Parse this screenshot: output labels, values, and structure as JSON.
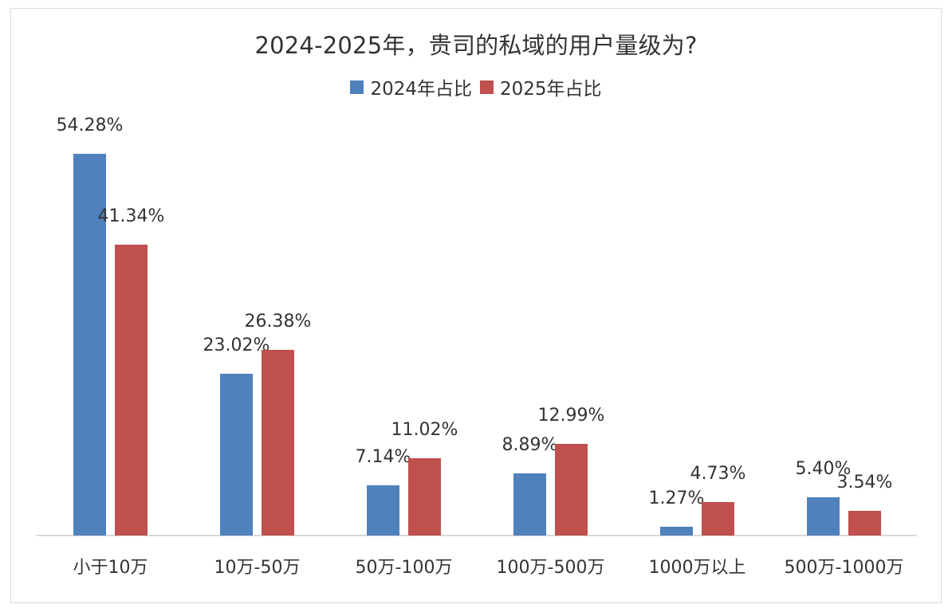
{
  "chart": {
    "title": "2024-2025年，贵司的私域的用户量级为?",
    "legend": [
      {
        "label": "2024年占比",
        "color": "#4f81bd"
      },
      {
        "label": "2025年占比",
        "color": "#c0504d"
      }
    ]
  },
  "chart_data": {
    "type": "bar",
    "title": "2024-2025年，贵司的私域的用户量级为?",
    "xlabel": "",
    "ylabel": "",
    "ylim": [
      0,
      60
    ],
    "grid": false,
    "legend_position": "top",
    "categories": [
      "小于10万",
      "10万-50万",
      "50万-100万",
      "100万-500万",
      "1000万以上",
      "500万-1000万"
    ],
    "series": [
      {
        "name": "2024年占比",
        "color": "#4f81bd",
        "values": [
          54.28,
          23.02,
          7.14,
          8.89,
          1.27,
          5.4
        ],
        "labels": [
          "54.28%",
          "23.02%",
          "7.14%",
          "8.89%",
          "1.27%",
          "5.40%"
        ]
      },
      {
        "name": "2025年占比",
        "color": "#c0504d",
        "values": [
          41.34,
          26.38,
          11.02,
          12.99,
          4.73,
          3.54
        ],
        "labels": [
          "41.34%",
          "26.38%",
          "11.02%",
          "12.99%",
          "4.73%",
          "3.54%"
        ]
      }
    ]
  }
}
